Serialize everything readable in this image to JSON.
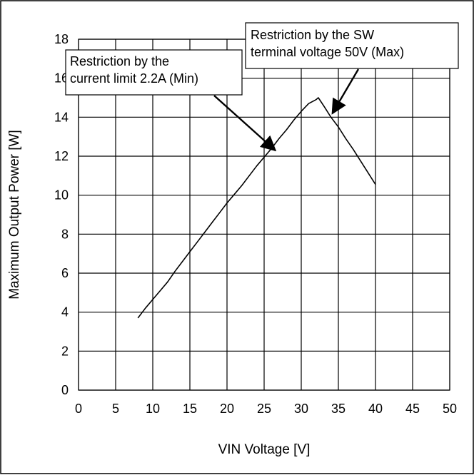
{
  "chart_data": {
    "type": "line",
    "title": "",
    "xlabel": "VIN Voltage [V]",
    "ylabel": "Maximum Output Power [W]",
    "xlim": [
      0,
      50
    ],
    "ylim": [
      0,
      18
    ],
    "xticks": [
      0,
      5,
      10,
      15,
      20,
      25,
      30,
      35,
      40,
      45,
      50
    ],
    "yticks": [
      0,
      2,
      4,
      6,
      8,
      10,
      12,
      14,
      16,
      18
    ],
    "grid": true,
    "legend": "none",
    "series": [
      {
        "color": "#000000",
        "x": [
          8,
          9,
          10,
          11,
          12,
          13,
          14,
          15,
          16,
          17,
          18,
          19,
          20,
          21,
          22,
          23,
          24,
          25,
          26,
          27,
          28,
          29,
          30,
          31,
          32,
          32.3,
          33,
          34,
          35,
          36,
          37,
          38,
          39,
          40
        ],
        "y": [
          3.7,
          4.2,
          4.65,
          5.1,
          5.55,
          6.1,
          6.6,
          7.1,
          7.6,
          8.1,
          8.6,
          9.1,
          9.6,
          10.05,
          10.5,
          11.0,
          11.5,
          11.95,
          12.4,
          12.9,
          13.35,
          13.85,
          14.3,
          14.7,
          14.9,
          15.0,
          14.6,
          14.0,
          13.5,
          12.9,
          12.35,
          11.75,
          11.15,
          10.55
        ]
      }
    ],
    "annotations": [
      {
        "lines": [
          "Restriction by the",
          "current limit 2.2A (Min)"
        ],
        "point": [
          26.5,
          12.3
        ]
      },
      {
        "lines": [
          "Restriction by the SW",
          "terminal voltage 50V (Max)"
        ],
        "point": [
          34.2,
          14.2
        ]
      }
    ]
  }
}
